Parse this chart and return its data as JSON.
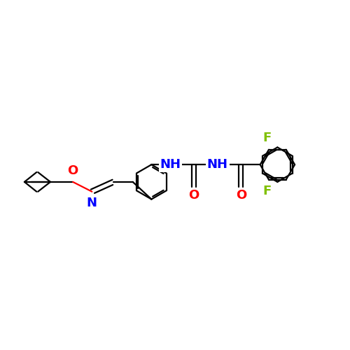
{
  "bg_color": "#ffffff",
  "bond_color": "#000000",
  "nitrogen_color": "#0000ff",
  "oxygen_color": "#ff0000",
  "fluorine_color": "#80c000",
  "bond_width": 1.6,
  "figsize": [
    5.0,
    5.0
  ],
  "dpi": 100,
  "xlim": [
    -0.5,
    9.5
  ],
  "ylim": [
    -1.8,
    3.2
  ],
  "label_fontsize": 13
}
